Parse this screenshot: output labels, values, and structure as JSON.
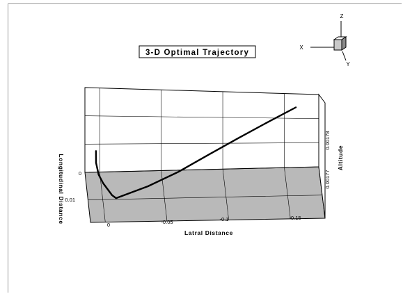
{
  "chart_data": {
    "type": "line",
    "projection": "3d",
    "title": "3-D Optimal Trajectory",
    "xlabel": "Latral Distance",
    "ylabel": "Longitudinal Distance",
    "zlabel": "Altitude",
    "x_ticks": [
      "0",
      "-0.05",
      "-0.1",
      "-0.15"
    ],
    "y_ticks": [
      "0",
      "0.01"
    ],
    "z_ticks": [
      "0.00177",
      "0.00178"
    ],
    "xlim": [
      0.012,
      -0.178
    ],
    "ylim": [
      0,
      0.017
    ],
    "zlim": [
      0.001765,
      0.001785
    ],
    "grid": true,
    "series": [
      {
        "x": [
          0.003,
          0.004,
          0.003,
          0.0,
          -0.003,
          -0.006,
          -0.009,
          -0.035,
          -0.06,
          -0.085,
          -0.11,
          -0.135,
          -0.158
        ],
        "y": [
          0.0,
          0.004,
          0.008,
          0.011,
          0.013,
          0.015,
          0.016,
          0.0155,
          0.014,
          0.0115,
          0.009,
          0.0065,
          0.0045
        ],
        "z": [
          0.00177,
          0.00177,
          0.00177,
          0.00177,
          0.00177,
          0.00177,
          0.00177,
          0.0017725,
          0.001775,
          0.0017775,
          0.00178,
          0.0017825,
          0.001785
        ]
      }
    ],
    "colors": {
      "floor": "#b9b9b9",
      "line": "#000000",
      "grid": "#000000"
    }
  },
  "orientation_axes": {
    "z": "Z",
    "x": "X",
    "y": "Y"
  }
}
